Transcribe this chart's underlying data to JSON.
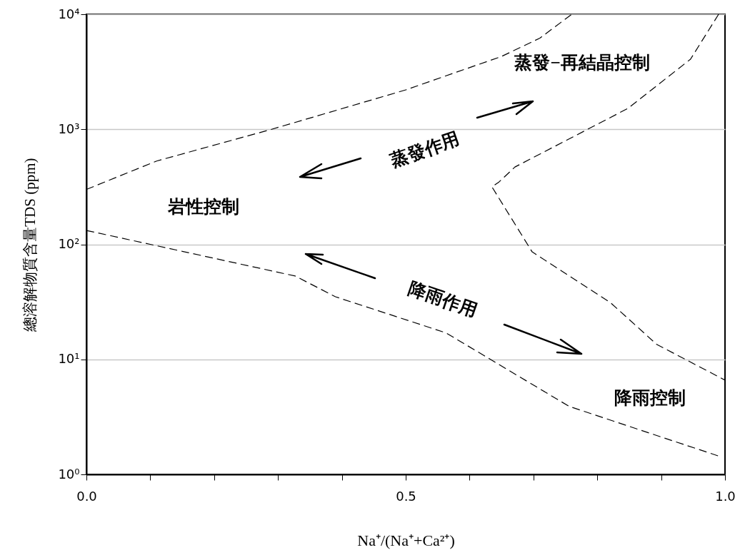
{
  "chart_data": {
    "type": "line",
    "xlabel": "Na⁺/(Na⁺+Ca²⁺)",
    "ylabel": "總溶解物質含量TDS (ppm)",
    "xlim": [
      0,
      1
    ],
    "xticks": [
      {
        "value": 0,
        "label": "0.0"
      },
      {
        "value": 0.1,
        "label": null
      },
      {
        "value": 0.2,
        "label": null
      },
      {
        "value": 0.3,
        "label": null
      },
      {
        "value": 0.4,
        "label": null
      },
      {
        "value": 0.5,
        "label": "0.5"
      },
      {
        "value": 0.6,
        "label": null
      },
      {
        "value": 0.7,
        "label": null
      },
      {
        "value": 0.8,
        "label": null
      },
      {
        "value": 0.9,
        "label": null
      },
      {
        "value": 1,
        "label": "1.0"
      }
    ],
    "ylim": [
      1,
      10000
    ],
    "yticks": [
      {
        "value": 1,
        "label": "10⁰"
      },
      {
        "value": 10,
        "label": "10¹"
      },
      {
        "value": 100,
        "label": "10²"
      },
      {
        "value": 1000,
        "label": "10³"
      },
      {
        "value": 10000,
        "label": "10⁴"
      }
    ],
    "log": true,
    "grid": "y",
    "line_style": "dashed",
    "marker": "none",
    "series": [
      {
        "color": "#000000",
        "x": [
          0,
          0.11,
          0.29,
          0.5,
          0.65,
          0.71,
          0.76
        ],
        "values": [
          300,
          530,
          1000,
          2200,
          4300,
          6200,
          10000
        ]
      },
      {
        "color": "#000000",
        "x": [
          0.99,
          0.946,
          0.848,
          0.671,
          0.646,
          0.635,
          0.698,
          0.821,
          0.893,
          1
        ],
        "values": [
          10000,
          4070,
          1520,
          470,
          348,
          316,
          86,
          31,
          13.5,
          6.6
        ]
      },
      {
        "color": "#000000",
        "x": [
          0,
          0.1,
          0.327,
          0.39,
          0.563,
          0.756,
          0.989
        ],
        "values": [
          132,
          100,
          53,
          35,
          17,
          3.9,
          1.45
        ]
      }
    ],
    "annotations": [
      "岩性控制",
      "蒸發作用",
      "蒸發−再結晶控制",
      "降雨作用",
      "降雨控制"
    ]
  }
}
